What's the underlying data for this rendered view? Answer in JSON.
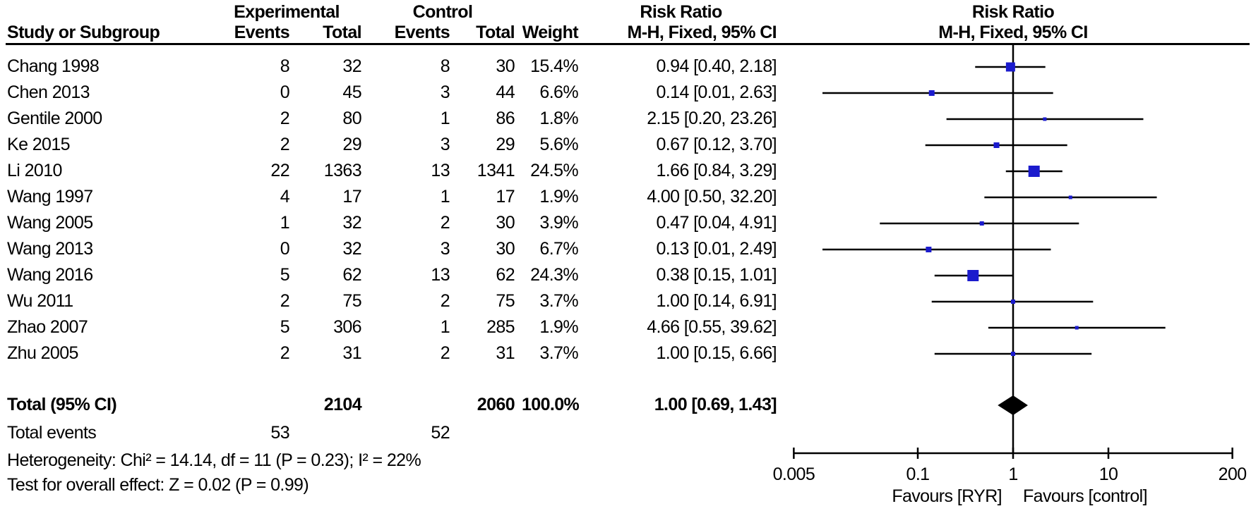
{
  "chart_data": {
    "type": "forest_plot",
    "title_text_column": "Risk Ratio",
    "title_plot_column": "Risk Ratio",
    "effect_measure": "Risk Ratio",
    "method_label_text": "M-H, Fixed, 95% CI",
    "method_label_plot": "M-H, Fixed, 95% CI",
    "group_headers": {
      "experimental": "Experimental",
      "control": "Control"
    },
    "columns": {
      "study": "Study or Subgroup",
      "exp_events": "Events",
      "exp_total": "Total",
      "ctrl_events": "Events",
      "ctrl_total": "Total",
      "weight": "Weight",
      "effect": "M-H, Fixed, 95% CI"
    },
    "studies": [
      {
        "name": "Chang 1998",
        "exp_events": "8",
        "exp_total": "32",
        "ctrl_events": "8",
        "ctrl_total": "30",
        "weight": "15.4%",
        "weight_pct": 15.4,
        "rr": 0.94,
        "ci_low": 0.4,
        "ci_high": 2.18,
        "rr_label": "0.94 [0.40, 2.18]"
      },
      {
        "name": "Chen 2013",
        "exp_events": "0",
        "exp_total": "45",
        "ctrl_events": "3",
        "ctrl_total": "44",
        "weight": "6.6%",
        "weight_pct": 6.6,
        "rr": 0.14,
        "ci_low": 0.01,
        "ci_high": 2.63,
        "rr_label": "0.14 [0.01, 2.63]"
      },
      {
        "name": "Gentile 2000",
        "exp_events": "2",
        "exp_total": "80",
        "ctrl_events": "1",
        "ctrl_total": "86",
        "weight": "1.8%",
        "weight_pct": 1.8,
        "rr": 2.15,
        "ci_low": 0.2,
        "ci_high": 23.26,
        "rr_label": "2.15 [0.20, 23.26]"
      },
      {
        "name": "Ke 2015",
        "exp_events": "2",
        "exp_total": "29",
        "ctrl_events": "3",
        "ctrl_total": "29",
        "weight": "5.6%",
        "weight_pct": 5.6,
        "rr": 0.67,
        "ci_low": 0.12,
        "ci_high": 3.7,
        "rr_label": "0.67 [0.12, 3.70]"
      },
      {
        "name": "Li 2010",
        "exp_events": "22",
        "exp_total": "1363",
        "ctrl_events": "13",
        "ctrl_total": "1341",
        "weight": "24.5%",
        "weight_pct": 24.5,
        "rr": 1.66,
        "ci_low": 0.84,
        "ci_high": 3.29,
        "rr_label": "1.66 [0.84, 3.29]"
      },
      {
        "name": "Wang 1997",
        "exp_events": "4",
        "exp_total": "17",
        "ctrl_events": "1",
        "ctrl_total": "17",
        "weight": "1.9%",
        "weight_pct": 1.9,
        "rr": 4.0,
        "ci_low": 0.5,
        "ci_high": 32.2,
        "rr_label": "4.00 [0.50, 32.20]"
      },
      {
        "name": "Wang 2005",
        "exp_events": "1",
        "exp_total": "32",
        "ctrl_events": "2",
        "ctrl_total": "30",
        "weight": "3.9%",
        "weight_pct": 3.9,
        "rr": 0.47,
        "ci_low": 0.04,
        "ci_high": 4.91,
        "rr_label": "0.47 [0.04, 4.91]"
      },
      {
        "name": "Wang 2013",
        "exp_events": "0",
        "exp_total": "32",
        "ctrl_events": "3",
        "ctrl_total": "30",
        "weight": "6.7%",
        "weight_pct": 6.7,
        "rr": 0.13,
        "ci_low": 0.01,
        "ci_high": 2.49,
        "rr_label": "0.13 [0.01, 2.49]"
      },
      {
        "name": "Wang 2016",
        "exp_events": "5",
        "exp_total": "62",
        "ctrl_events": "13",
        "ctrl_total": "62",
        "weight": "24.3%",
        "weight_pct": 24.3,
        "rr": 0.38,
        "ci_low": 0.15,
        "ci_high": 1.01,
        "rr_label": "0.38 [0.15, 1.01]"
      },
      {
        "name": "Wu 2011",
        "exp_events": "2",
        "exp_total": "75",
        "ctrl_events": "2",
        "ctrl_total": "75",
        "weight": "3.7%",
        "weight_pct": 3.7,
        "rr": 1.0,
        "ci_low": 0.14,
        "ci_high": 6.91,
        "rr_label": "1.00 [0.14, 6.91]"
      },
      {
        "name": "Zhao 2007",
        "exp_events": "5",
        "exp_total": "306",
        "ctrl_events": "1",
        "ctrl_total": "285",
        "weight": "1.9%",
        "weight_pct": 1.9,
        "rr": 4.66,
        "ci_low": 0.55,
        "ci_high": 39.62,
        "rr_label": "4.66 [0.55, 39.62]"
      },
      {
        "name": "Zhu 2005",
        "exp_events": "2",
        "exp_total": "31",
        "ctrl_events": "2",
        "ctrl_total": "31",
        "weight": "3.7%",
        "weight_pct": 3.7,
        "rr": 1.0,
        "ci_low": 0.15,
        "ci_high": 6.66,
        "rr_label": "1.00 [0.15, 6.66]"
      }
    ],
    "total": {
      "label": "Total (95% CI)",
      "exp_total": "2104",
      "ctrl_total": "2060",
      "weight": "100.0%",
      "rr": 1.0,
      "ci_low": 0.69,
      "ci_high": 1.43,
      "rr_label": "1.00 [0.69, 1.43]"
    },
    "total_events": {
      "label": "Total events",
      "experimental": "53",
      "control": "52"
    },
    "heterogeneity": "Heterogeneity: Chi² = 14.14, df = 11 (P = 0.23); I² = 22%",
    "overall_effect": "Test for overall effect: Z = 0.02 (P = 0.99)",
    "axis": {
      "scale": "log",
      "range": [
        0.005,
        200
      ],
      "ticks": [
        0.005,
        0.1,
        1,
        10,
        200
      ],
      "tick_labels": [
        "0.005",
        "0.1",
        "1",
        "10",
        "200"
      ]
    },
    "favours_left": "Favours [RYR]",
    "favours_right": "Favours [control]",
    "colors": {
      "marker": "#1b1bcd",
      "line": "#000000",
      "diamond": "#000000",
      "text": "#000000",
      "background": "#ffffff"
    }
  }
}
